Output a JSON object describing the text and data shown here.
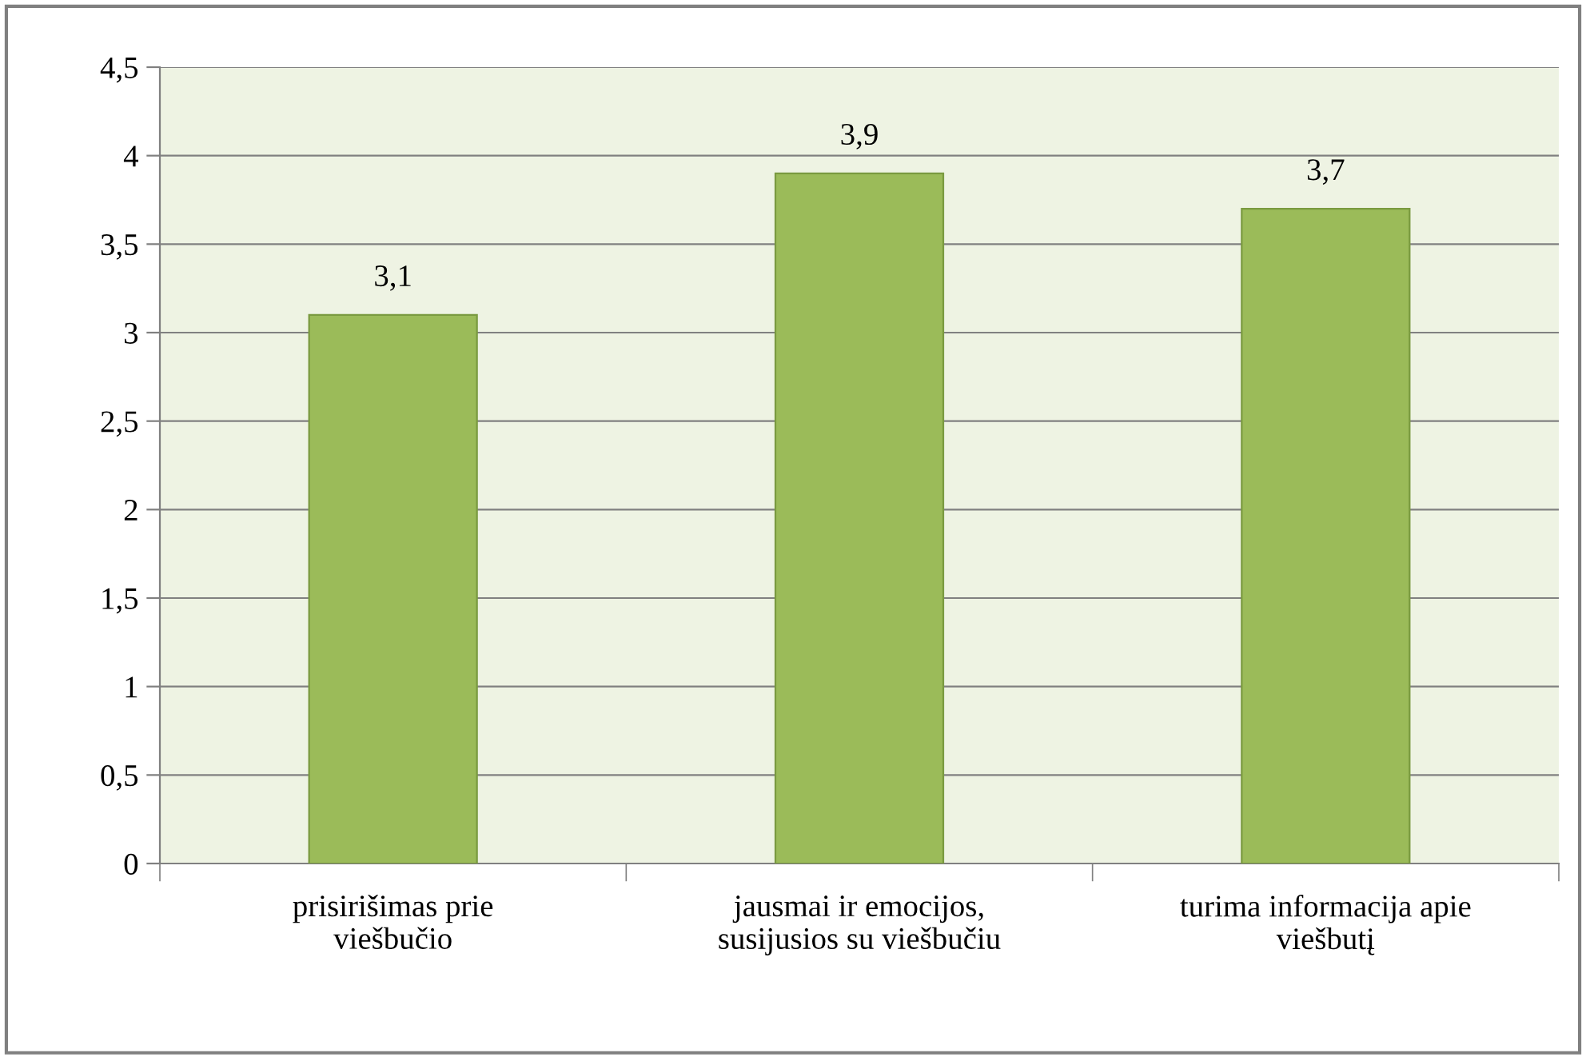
{
  "chart_data": {
    "type": "bar",
    "categories": [
      "prisirišimas prie\nviešbučio",
      "jausmai ir emocijos,\nsusijusios su viešbučiu",
      "turima informacija apie\nviešbutį"
    ],
    "values": [
      3.1,
      3.9,
      3.7
    ],
    "color": "#9bbb59",
    "value_labels": [
      "3,1",
      "3,9",
      "3,7"
    ],
    "ylim": [
      0,
      4.5
    ],
    "yticks": [
      0,
      {
        "value": 0.5,
        "label": "0,5"
      },
      1,
      {
        "value": 1.5,
        "label": "1,5"
      },
      2,
      {
        "value": 2.5,
        "label": "2,5"
      },
      3,
      {
        "value": 3.5,
        "label": "3,5"
      },
      4,
      {
        "value": 4.5,
        "label": "4,5"
      }
    ],
    "grid": "y",
    "legend": false
  }
}
